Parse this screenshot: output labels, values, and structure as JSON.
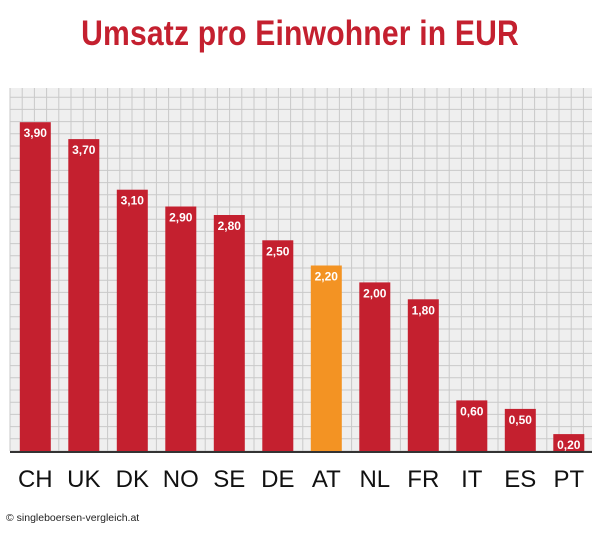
{
  "title": "Umsatz pro Einwohner in EUR",
  "copyright": "© singleboersen-vergleich.at",
  "colors": {
    "bar": "#c4202f",
    "highlight": "#f39323",
    "plot_bg": "#efefef",
    "grid": "#c9c9c9",
    "axis": "#333333",
    "title": "#c4202f"
  },
  "chart_data": {
    "type": "bar",
    "title": "Umsatz pro Einwohner in EUR",
    "xlabel": "",
    "ylabel": "",
    "categories": [
      "CH",
      "UK",
      "DK",
      "NO",
      "SE",
      "DE",
      "AT",
      "NL",
      "FR",
      "IT",
      "ES",
      "PT"
    ],
    "values": [
      3.9,
      3.7,
      3.1,
      2.9,
      2.8,
      2.5,
      2.2,
      2.0,
      1.8,
      0.6,
      0.5,
      0.2
    ],
    "value_labels": [
      "3,90",
      "3,70",
      "3,10",
      "2,90",
      "2,80",
      "2,50",
      "2,20",
      "2,00",
      "1,80",
      "0,60",
      "0,50",
      "0,20"
    ],
    "highlight_category": "AT",
    "ylim": [
      0,
      4.5
    ],
    "grid": true,
    "legend": "none"
  }
}
